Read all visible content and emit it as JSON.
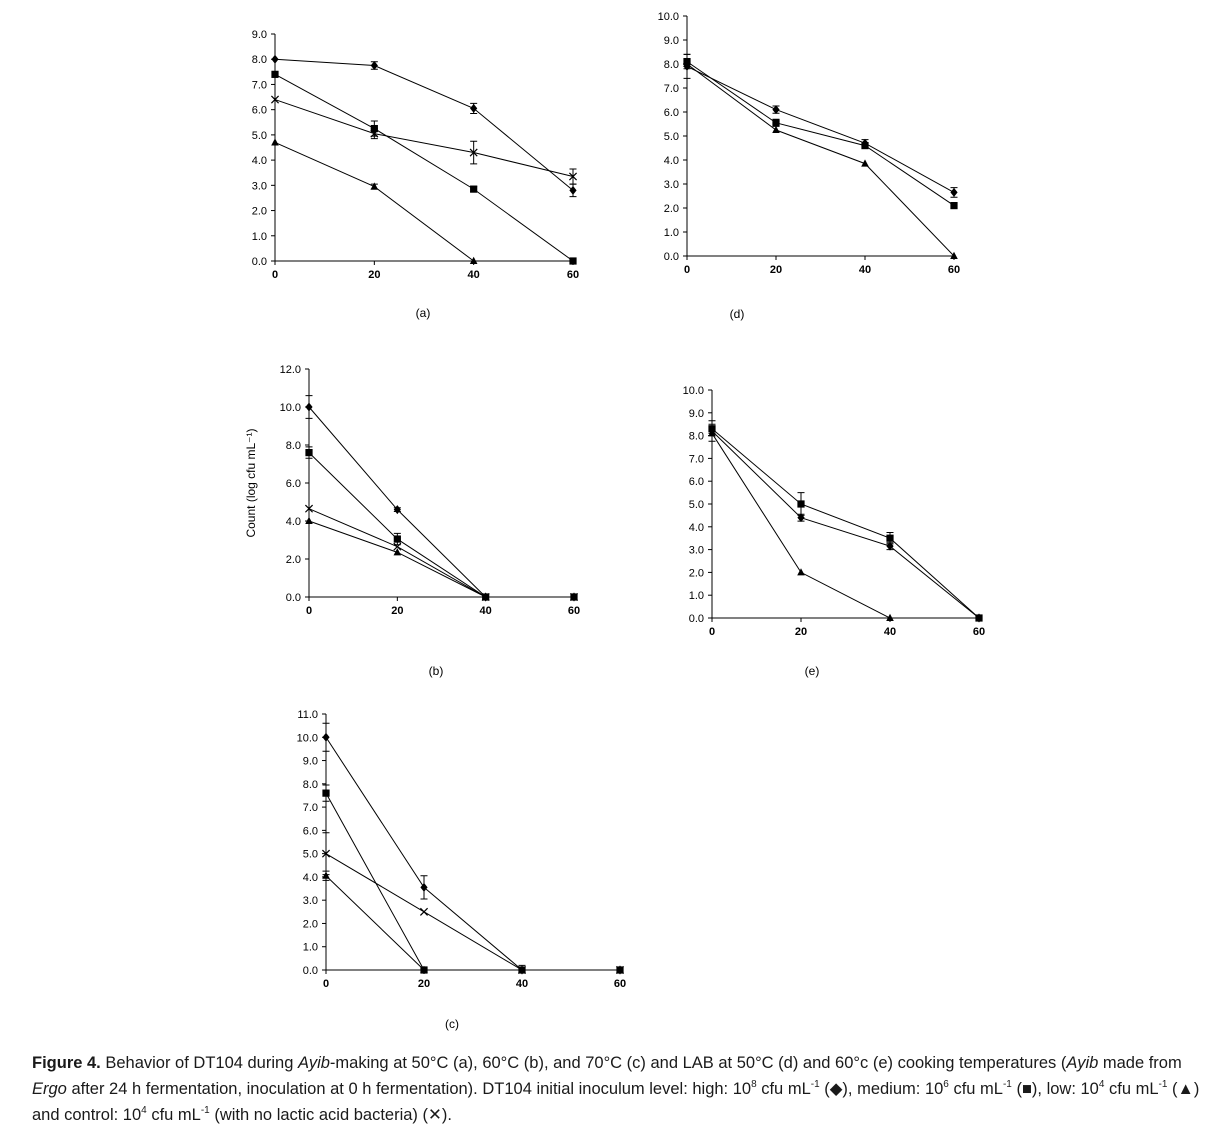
{
  "chart_data": [
    {
      "id": "a",
      "type": "line",
      "panel_label": "(a)",
      "ylim": [
        0,
        9
      ],
      "yticks": [
        "0.0",
        "1.0",
        "2.0",
        "3.0",
        "4.0",
        "5.0",
        "6.0",
        "7.0",
        "8.0",
        "9.0"
      ],
      "xlim": [
        0,
        60
      ],
      "xticks": [
        "0",
        "20",
        "40",
        "60"
      ],
      "ylabel": "",
      "series": [
        {
          "name": "high",
          "marker": "diamond",
          "x": [
            0,
            20,
            40,
            60
          ],
          "values": [
            8.0,
            7.75,
            6.05,
            2.8
          ],
          "errors": [
            0,
            0.15,
            0.2,
            0.25
          ]
        },
        {
          "name": "medium",
          "marker": "square",
          "x": [
            0,
            20,
            40,
            60
          ],
          "values": [
            7.4,
            5.25,
            2.85,
            0.0
          ],
          "errors": [
            0,
            0.3,
            0.1,
            0
          ]
        },
        {
          "name": "low",
          "marker": "triangle",
          "x": [
            0,
            20,
            40
          ],
          "values": [
            4.7,
            2.95,
            0.0
          ],
          "errors": [
            0,
            0.1,
            0
          ]
        },
        {
          "name": "control",
          "marker": "cross",
          "x": [
            0,
            20,
            40,
            60
          ],
          "values": [
            6.4,
            5.05,
            4.3,
            3.35
          ],
          "errors": [
            0,
            0.2,
            0.45,
            0.3
          ]
        }
      ]
    },
    {
      "id": "d",
      "type": "line",
      "panel_label": "(d)",
      "ylim": [
        0,
        10
      ],
      "yticks": [
        "0.0",
        "1.0",
        "2.0",
        "3.0",
        "4.0",
        "5.0",
        "6.0",
        "7.0",
        "8.0",
        "9.0",
        "10.0"
      ],
      "xlim": [
        0,
        60
      ],
      "xticks": [
        "0",
        "20",
        "40",
        "60"
      ],
      "ylabel": "",
      "series": [
        {
          "name": "high",
          "marker": "diamond",
          "x": [
            0,
            20,
            40,
            60
          ],
          "values": [
            7.9,
            6.1,
            4.7,
            2.65
          ],
          "errors": [
            0.5,
            0.15,
            0.15,
            0.2
          ]
        },
        {
          "name": "medium",
          "marker": "square",
          "x": [
            0,
            20,
            40,
            60
          ],
          "values": [
            8.1,
            5.55,
            4.6,
            2.1
          ],
          "errors": [
            0.3,
            0.15,
            0.1,
            0
          ]
        },
        {
          "name": "low",
          "marker": "triangle",
          "x": [
            0,
            20,
            40,
            60
          ],
          "values": [
            8.0,
            5.25,
            3.85,
            0.0
          ],
          "errors": [
            0,
            0,
            0,
            0
          ]
        }
      ]
    },
    {
      "id": "b",
      "type": "line",
      "panel_label": "(b)",
      "ylim": [
        0,
        12
      ],
      "yticks": [
        "0.0",
        "2.0",
        "4.0",
        "6.0",
        "8.0",
        "10.0",
        "12.0"
      ],
      "xlim": [
        0,
        60
      ],
      "xticks": [
        "0",
        "20",
        "40",
        "60"
      ],
      "ylabel": "Count (log cfu mL⁻¹)",
      "series": [
        {
          "name": "high",
          "marker": "diamond",
          "x": [
            0,
            20,
            40,
            60
          ],
          "values": [
            10.0,
            4.6,
            0.0,
            0.0
          ],
          "errors": [
            0.6,
            0.1,
            0,
            0
          ]
        },
        {
          "name": "medium",
          "marker": "square",
          "x": [
            0,
            20,
            40,
            60
          ],
          "values": [
            7.6,
            3.05,
            0.0,
            0.0
          ],
          "errors": [
            0.3,
            0.3,
            0,
            0
          ]
        },
        {
          "name": "low",
          "marker": "triangle",
          "x": [
            0,
            20,
            40,
            60
          ],
          "values": [
            4.0,
            2.35,
            0.0,
            0.0
          ],
          "errors": [
            0,
            0,
            0,
            0
          ]
        },
        {
          "name": "control",
          "marker": "cross",
          "x": [
            0,
            20,
            40,
            60
          ],
          "values": [
            4.65,
            2.65,
            0.0,
            0.0
          ],
          "errors": [
            0,
            0,
            0,
            0
          ]
        }
      ]
    },
    {
      "id": "e",
      "type": "line",
      "panel_label": "(e)",
      "ylim": [
        0,
        10
      ],
      "yticks": [
        "0.0",
        "1.0",
        "2.0",
        "3.0",
        "4.0",
        "5.0",
        "6.0",
        "7.0",
        "8.0",
        "9.0",
        "10.0"
      ],
      "xlim": [
        0,
        60
      ],
      "xticks": [
        "0",
        "20",
        "40",
        "60"
      ],
      "ylabel": "",
      "series": [
        {
          "name": "high",
          "marker": "diamond",
          "x": [
            0,
            20,
            40,
            60
          ],
          "values": [
            8.2,
            4.4,
            3.15,
            0.0
          ],
          "errors": [
            0.45,
            0.15,
            0.15,
            0
          ]
        },
        {
          "name": "medium",
          "marker": "square",
          "x": [
            0,
            20,
            40,
            60
          ],
          "values": [
            8.3,
            5.0,
            3.5,
            0.0
          ],
          "errors": [
            0.2,
            0.5,
            0.25,
            0
          ]
        },
        {
          "name": "low",
          "marker": "triangle",
          "x": [
            0,
            20,
            40
          ],
          "values": [
            8.1,
            2.0,
            0.0
          ],
          "errors": [
            0,
            0,
            0
          ]
        }
      ]
    },
    {
      "id": "c",
      "type": "line",
      "panel_label": "(c)",
      "ylim": [
        0,
        11
      ],
      "yticks": [
        "0.0",
        "1.0",
        "2.0",
        "3.0",
        "4.0",
        "5.0",
        "6.0",
        "7.0",
        "8.0",
        "9.0",
        "10.0",
        "11.0"
      ],
      "xlim": [
        0,
        60
      ],
      "xticks": [
        "0",
        "20",
        "40",
        "60"
      ],
      "ylabel": "",
      "series": [
        {
          "name": "high",
          "marker": "diamond",
          "x": [
            0,
            20,
            40,
            60
          ],
          "values": [
            10.0,
            3.55,
            0.0,
            0.0
          ],
          "errors": [
            0.6,
            0.5,
            0.2,
            0
          ]
        },
        {
          "name": "medium",
          "marker": "square",
          "x": [
            0,
            20,
            40,
            60
          ],
          "values": [
            7.6,
            0.0,
            0.0,
            0.0
          ],
          "errors": [
            0.35,
            0,
            0,
            0
          ]
        },
        {
          "name": "low",
          "marker": "triangle",
          "x": [
            0,
            20,
            40,
            60
          ],
          "values": [
            4.05,
            0.0,
            0.0,
            0.0
          ],
          "errors": [
            0.2,
            0,
            0,
            0
          ]
        },
        {
          "name": "control",
          "marker": "cross",
          "x": [
            0,
            20,
            40,
            60
          ],
          "values": [
            5.0,
            2.5,
            0.0,
            0.0
          ],
          "errors": [
            0.9,
            0,
            0,
            0
          ]
        }
      ]
    }
  ],
  "caption": {
    "figure_label": "Figure 4.",
    "text_1": " Behavior of DT104 during ",
    "ayib": "Ayib",
    "text_2": "-making at 50°C (a), 60°C (b), and 70°C (c) and LAB at 50°C (d) and 60°c (e) cooking temperatures (",
    "ayib_2": "Ayib",
    "text_3": " made from ",
    "ergo": "Ergo",
    "text_4": " after 24 h fermentation, inoculation at 0 h fermentation). DT104 initial inoculum level: high: 10",
    "exp_high": "8",
    "text_5": " cfu mL",
    "exp_unit_1": "-1",
    "text_6": " (◆), medium: 10",
    "exp_medium": "6",
    "text_7": " cfu mL",
    "exp_unit_2": "-1",
    "text_8": " (■), low: 10",
    "exp_low": "4",
    "text_9": " cfu mL",
    "exp_unit_3": "-1",
    "text_10": " (▲) and control: 10",
    "exp_control": "4",
    "text_11": " cfu mL",
    "exp_unit_4": "-1",
    "text_12": " (with no lactic acid bacteria) (✕)."
  }
}
